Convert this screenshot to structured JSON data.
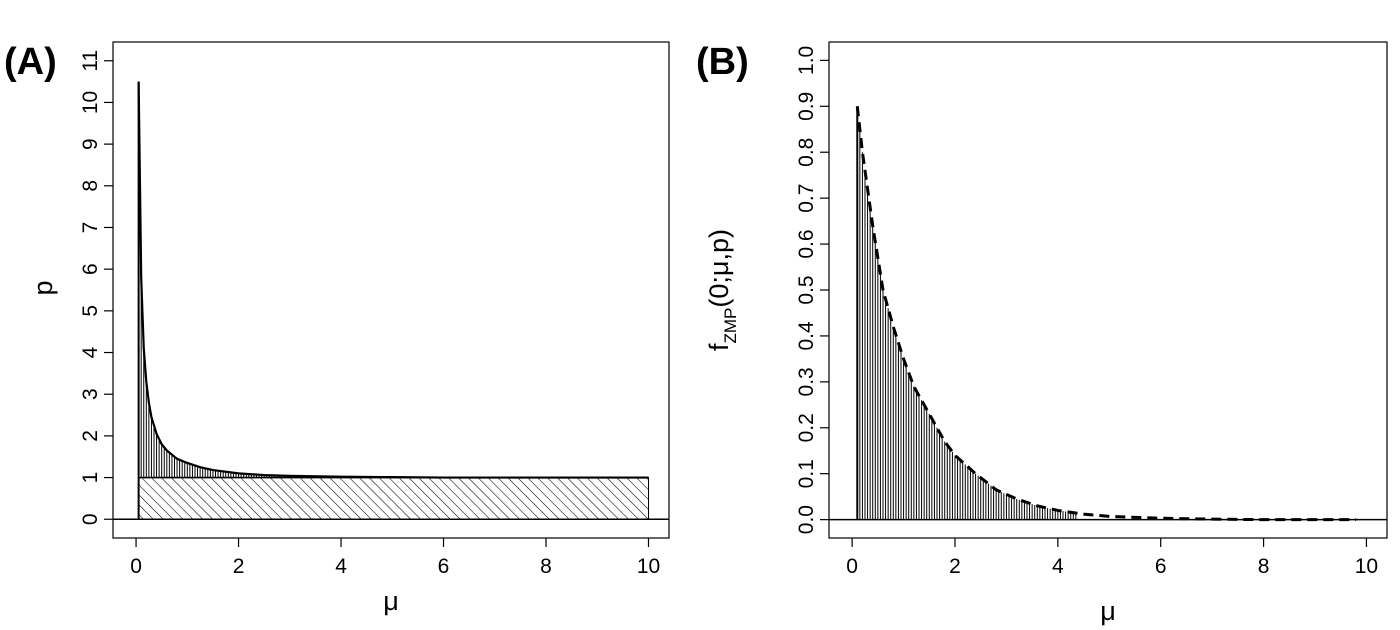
{
  "chart_data": [
    {
      "panel_label": "(A)",
      "type": "line",
      "xlabel": "μ",
      "ylabel": "p",
      "xlim": [
        -0.45,
        10.4
      ],
      "ylim": [
        -0.45,
        11.45
      ],
      "xticks": [
        "0",
        "2",
        "4",
        "6",
        "8",
        "10"
      ],
      "yticks": [
        "0",
        "1",
        "2",
        "3",
        "4",
        "5",
        "6",
        "7",
        "8",
        "9",
        "10",
        "11"
      ],
      "grid": false,
      "series": [
        {
          "style": "solid",
          "x": [
            0.05,
            0.1,
            0.15,
            0.2,
            0.25,
            0.3,
            0.4,
            0.5,
            0.6,
            0.8,
            1.0,
            1.25,
            1.5,
            2.0,
            2.5,
            3.0,
            4.0,
            5.0,
            6.0,
            8.0,
            10.0
          ],
          "y": [
            10.5,
            5.8,
            4.1,
            3.3,
            2.8,
            2.45,
            2.05,
            1.8,
            1.65,
            1.45,
            1.35,
            1.25,
            1.18,
            1.1,
            1.06,
            1.04,
            1.02,
            1.01,
            1.0,
            1.0,
            1.0
          ]
        },
        {
          "style": "solid",
          "x": [
            0.05,
            10.0
          ],
          "y": [
            1.0,
            1.0
          ]
        }
      ],
      "shaded_regions": [
        {
          "pattern": "vertical-lines",
          "between": "curve and p = 1",
          "x_range": [
            0.05,
            10.0
          ]
        },
        {
          "pattern": "diagonal-hatch",
          "between": "p = 0 and p = 1",
          "x_range": [
            0.05,
            10.0
          ]
        }
      ]
    },
    {
      "panel_label": "(B)",
      "type": "line",
      "xlabel": "μ",
      "ylabel": "f",
      "ylabel_subscript": "ZMP",
      "ylabel_args": "(0;μ,p)",
      "xlim": [
        -0.45,
        10.4
      ],
      "ylim": [
        -0.04,
        1.04
      ],
      "xticks": [
        "0",
        "2",
        "4",
        "6",
        "8",
        "10"
      ],
      "yticks": [
        "0.0",
        "0.1",
        "0.2",
        "0.3",
        "0.4",
        "0.5",
        "0.6",
        "0.7",
        "0.8",
        "0.9",
        "1.0"
      ],
      "grid": false,
      "series": [
        {
          "style": "dashed",
          "x": [
            0.1,
            0.2,
            0.3,
            0.4,
            0.5,
            0.6,
            0.8,
            1.0,
            1.2,
            1.4,
            1.6,
            1.8,
            2.0,
            2.4,
            2.8,
            3.2,
            3.6,
            4.0,
            4.5,
            5.0,
            6.0,
            7.0,
            8.0,
            9.0,
            9.8
          ],
          "y": [
            0.9,
            0.8,
            0.72,
            0.64,
            0.57,
            0.5,
            0.42,
            0.35,
            0.29,
            0.25,
            0.21,
            0.17,
            0.14,
            0.1,
            0.065,
            0.045,
            0.03,
            0.02,
            0.012,
            0.007,
            0.003,
            0.001,
            0.0,
            0.0,
            0.0
          ]
        }
      ],
      "shaded_regions": [
        {
          "pattern": "vertical-lines",
          "between": "f = 0 and curve",
          "x_range": [
            0.1,
            9.8
          ]
        }
      ]
    }
  ]
}
